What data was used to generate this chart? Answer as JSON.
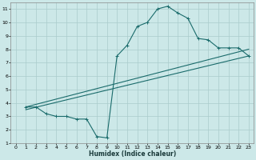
{
  "xlabel": "Humidex (Indice chaleur)",
  "background_color": "#cce8e8",
  "grid_color": "#aacccc",
  "line_color": "#1a6b6b",
  "xlim": [
    -0.5,
    23.5
  ],
  "ylim": [
    1,
    11.5
  ],
  "xticks": [
    0,
    1,
    2,
    3,
    4,
    5,
    6,
    7,
    8,
    9,
    10,
    11,
    12,
    13,
    14,
    15,
    16,
    17,
    18,
    19,
    20,
    21,
    22,
    23
  ],
  "yticks": [
    1,
    2,
    3,
    4,
    5,
    6,
    7,
    8,
    9,
    10,
    11
  ],
  "line1_x": [
    1,
    2,
    3,
    4,
    5,
    6,
    7,
    8,
    9,
    10,
    11,
    12,
    13,
    14,
    15,
    16,
    17,
    18,
    19,
    20,
    21,
    22,
    23
  ],
  "line1_y": [
    3.7,
    3.7,
    3.2,
    3.0,
    3.0,
    2.8,
    2.8,
    1.5,
    1.4,
    7.5,
    8.3,
    9.7,
    10.0,
    11.0,
    11.2,
    10.7,
    10.3,
    8.8,
    8.7,
    8.1,
    8.1,
    8.1,
    7.5
  ],
  "line2_x": [
    1,
    23
  ],
  "line2_y": [
    3.7,
    8.0
  ],
  "line3_x": [
    1,
    23
  ],
  "line3_y": [
    3.5,
    7.5
  ]
}
